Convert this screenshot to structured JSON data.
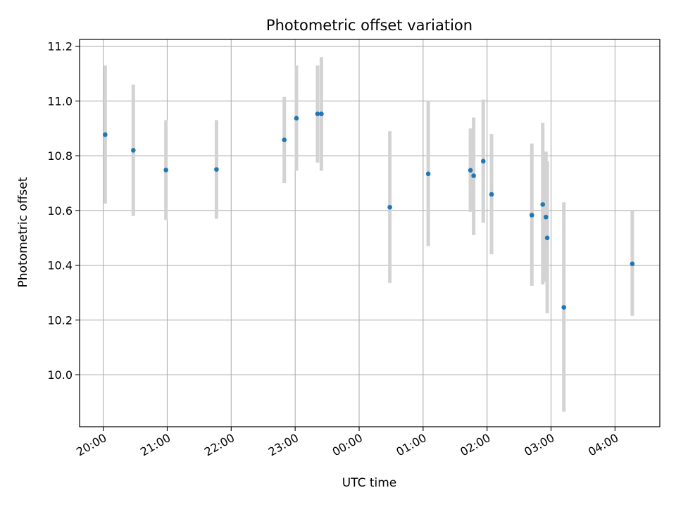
{
  "chart_data": {
    "type": "scatter",
    "title": "Photometric offset variation",
    "xlabel": "UTC time",
    "ylabel": "Photometric offset",
    "x_unit": "UTC time of night (hours after 00:00 of first day; values >= 24 are the following day)",
    "xlim": [
      19.63,
      28.7
    ],
    "ylim": [
      9.81,
      11.225
    ],
    "grid": true,
    "x_ticks": [
      {
        "value": 20,
        "label": "20:00"
      },
      {
        "value": 21,
        "label": "21:00"
      },
      {
        "value": 22,
        "label": "22:00"
      },
      {
        "value": 23,
        "label": "23:00"
      },
      {
        "value": 24,
        "label": "00:00"
      },
      {
        "value": 25,
        "label": "01:00"
      },
      {
        "value": 26,
        "label": "02:00"
      },
      {
        "value": 27,
        "label": "03:00"
      },
      {
        "value": 28,
        "label": "04:00"
      }
    ],
    "y_ticks": [
      {
        "value": 10.0,
        "label": "10.0"
      },
      {
        "value": 10.2,
        "label": "10.2"
      },
      {
        "value": 10.4,
        "label": "10.4"
      },
      {
        "value": 10.6,
        "label": "10.6"
      },
      {
        "value": 10.8,
        "label": "10.8"
      },
      {
        "value": 11.0,
        "label": "11.0"
      },
      {
        "value": 11.2,
        "label": "11.2"
      }
    ],
    "colors": {
      "point": "#1f77b4",
      "errorbar": "#d3d3d3",
      "grid": "#b0b0b0",
      "axes": "#000000"
    },
    "points": [
      {
        "x": 20.03,
        "y": 10.877,
        "lo": 10.625,
        "hi": 11.13
      },
      {
        "x": 20.47,
        "y": 10.82,
        "lo": 10.58,
        "hi": 11.06
      },
      {
        "x": 20.98,
        "y": 10.748,
        "lo": 10.565,
        "hi": 10.93
      },
      {
        "x": 21.77,
        "y": 10.75,
        "lo": 10.57,
        "hi": 10.93
      },
      {
        "x": 22.83,
        "y": 10.858,
        "lo": 10.7,
        "hi": 11.015
      },
      {
        "x": 23.02,
        "y": 10.937,
        "lo": 10.745,
        "hi": 11.13
      },
      {
        "x": 23.35,
        "y": 10.953,
        "lo": 10.775,
        "hi": 11.13
      },
      {
        "x": 23.41,
        "y": 10.953,
        "lo": 10.745,
        "hi": 11.16
      },
      {
        "x": 24.48,
        "y": 10.612,
        "lo": 10.335,
        "hi": 10.89
      },
      {
        "x": 25.08,
        "y": 10.734,
        "lo": 10.47,
        "hi": 11.0
      },
      {
        "x": 25.74,
        "y": 10.747,
        "lo": 10.595,
        "hi": 10.9
      },
      {
        "x": 25.79,
        "y": 10.727,
        "lo": 10.51,
        "hi": 10.94
      },
      {
        "x": 25.94,
        "y": 10.78,
        "lo": 10.555,
        "hi": 11.005
      },
      {
        "x": 26.07,
        "y": 10.659,
        "lo": 10.44,
        "hi": 10.88
      },
      {
        "x": 26.7,
        "y": 10.583,
        "lo": 10.325,
        "hi": 10.845
      },
      {
        "x": 26.87,
        "y": 10.622,
        "lo": 10.33,
        "hi": 10.92
      },
      {
        "x": 26.92,
        "y": 10.576,
        "lo": 10.34,
        "hi": 10.815
      },
      {
        "x": 26.94,
        "y": 10.5,
        "lo": 10.225,
        "hi": 10.78
      },
      {
        "x": 27.2,
        "y": 10.246,
        "lo": 9.865,
        "hi": 10.63
      },
      {
        "x": 28.27,
        "y": 10.405,
        "lo": 10.215,
        "hi": 10.6
      }
    ]
  }
}
